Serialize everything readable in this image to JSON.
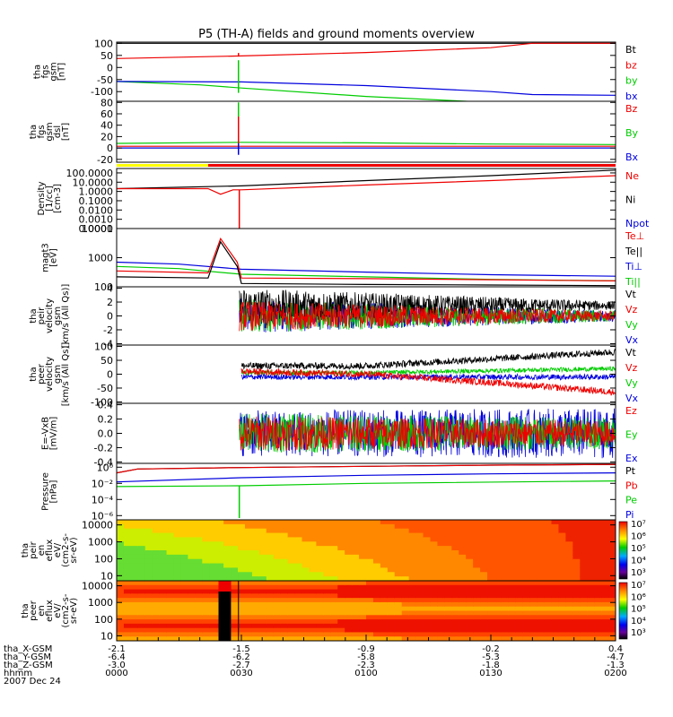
{
  "title": "P5 (TH-A) fields and ground moments overview",
  "colors": {
    "black": "#000000",
    "red": "#ee0000",
    "green": "#00cc00",
    "blue": "#0000dd",
    "yellow": "#ffff00"
  },
  "chart_data": [
    {
      "type": "line",
      "id": "fgs_gsm",
      "ylabel": [
        "tha",
        "fgs",
        "gsm",
        "[nT]"
      ],
      "ylim": [
        -140,
        105
      ],
      "yticks": [
        "100",
        "50",
        "0",
        "-50",
        "-100"
      ],
      "ytick_values": [
        100,
        50,
        0,
        -50,
        -100
      ],
      "legend": [
        {
          "label": "Bt",
          "color": "#000000"
        },
        {
          "label": "bz",
          "color": "#ee0000"
        },
        {
          "label": "by",
          "color": "#00cc00"
        },
        {
          "label": "bx",
          "color": "#0000dd"
        }
      ],
      "series": [
        {
          "name": "Bt",
          "color": "#000000",
          "x": [
            0,
            120
          ],
          "y": [
            100,
            100
          ]
        },
        {
          "name": "bz",
          "color": "#ee0000",
          "x": [
            0,
            30,
            60,
            90,
            100,
            120
          ],
          "y": [
            37,
            48,
            62,
            82,
            100,
            100
          ]
        },
        {
          "name": "by",
          "color": "#00cc00",
          "x": [
            0,
            20,
            30,
            60,
            90,
            120
          ],
          "y": [
            -58,
            -72,
            -85,
            -120,
            -145,
            -150
          ]
        },
        {
          "name": "bx",
          "color": "#0000dd",
          "x": [
            0,
            30,
            60,
            90,
            100,
            120
          ],
          "y": [
            -58,
            -60,
            -75,
            -100,
            -112,
            -115
          ]
        }
      ],
      "spikes": [
        {
          "x": 29.3,
          "color": "#00cc00",
          "y0": -105,
          "y1": 30
        },
        {
          "x": 29.3,
          "color": "#ee0000",
          "y0": 45,
          "y1": 60
        }
      ]
    },
    {
      "type": "line",
      "id": "fgs_gse",
      "ylabel": [
        "tha",
        "fgs",
        "gsm",
        "dsl",
        "[nT]"
      ],
      "ylim": [
        -25,
        82
      ],
      "yticks": [
        "80",
        "60",
        "40",
        "20",
        "0",
        "-20"
      ],
      "ytick_values": [
        80,
        60,
        40,
        20,
        0,
        -20
      ],
      "legend": [
        {
          "label": "Bz",
          "color": "#ee0000"
        },
        {
          "label": "By",
          "color": "#00cc00"
        },
        {
          "label": "Bx",
          "color": "#0000dd"
        }
      ],
      "series": [
        {
          "name": "Bz",
          "color": "#ee0000",
          "x": [
            0,
            30,
            60,
            90,
            120
          ],
          "y": [
            3,
            3,
            3,
            3,
            3
          ]
        },
        {
          "name": "By",
          "color": "#00cc00",
          "x": [
            0,
            30,
            60,
            90,
            120
          ],
          "y": [
            8,
            10,
            9,
            7,
            6
          ]
        },
        {
          "name": "Bx",
          "color": "#0000dd",
          "x": [
            0,
            30,
            60,
            90,
            120
          ],
          "y": [
            0,
            0,
            0,
            0,
            0
          ]
        }
      ],
      "spikes": [
        {
          "x": 29.3,
          "color": "#00cc00",
          "y0": -5,
          "y1": 80
        },
        {
          "x": 29.3,
          "color": "#ee0000",
          "y0": 0,
          "y1": 55
        },
        {
          "x": 29.3,
          "color": "#0000dd",
          "y0": -12,
          "y1": 8
        }
      ]
    },
    {
      "type": "bar",
      "id": "mode_bar",
      "segments": [
        {
          "x0": 0,
          "x1": 22,
          "color": "#ffff00"
        },
        {
          "x0": 22,
          "x1": 120,
          "color": "#ee0000"
        }
      ]
    },
    {
      "type": "line",
      "id": "density",
      "ylabel": [
        "Density",
        "[1/cc]",
        "[cm-3]"
      ],
      "log": true,
      "ylim": [
        0.0001,
        300
      ],
      "yticks": [
        "100.0000",
        "10.0000",
        "1.0000",
        "0.1000",
        "0.0100",
        "0.0010",
        "0.0001"
      ],
      "ytick_values": [
        100,
        10,
        1,
        0.1,
        0.01,
        0.001,
        0.0001
      ],
      "legend": [
        {
          "label": "Ne",
          "color": "#ee0000"
        },
        {
          "label": "Ni",
          "color": "#000000"
        },
        {
          "label": "Npot",
          "color": "#0000dd"
        }
      ],
      "series": [
        {
          "name": "Ni",
          "color": "#000000",
          "x": [
            0,
            30,
            60,
            90,
            120
          ],
          "y": [
            2,
            4,
            15,
            50,
            200
          ]
        },
        {
          "name": "Ne",
          "color": "#ee0000",
          "x": [
            0,
            22,
            25,
            28,
            30,
            60,
            90,
            120
          ],
          "y": [
            2,
            2,
            0.5,
            1.5,
            1.5,
            5,
            15,
            50
          ]
        }
      ],
      "spikes": [
        {
          "x": 29.5,
          "color": "#ee0000",
          "y0": 0.0001,
          "y1": 1.5
        }
      ]
    },
    {
      "type": "line",
      "id": "magt3",
      "ylabel": [
        "magt3",
        "[eV]"
      ],
      "log": true,
      "ylim": [
        100,
        10000
      ],
      "yticks": [
        "10000",
        "1000",
        "100"
      ],
      "ytick_values": [
        10000,
        1000,
        100
      ],
      "legend": [
        {
          "label": "Te⊥",
          "color": "#ee0000"
        },
        {
          "label": "Te||",
          "color": "#000000"
        },
        {
          "label": "Ti⊥",
          "color": "#0000dd"
        },
        {
          "label": "Ti||",
          "color": "#00cc00"
        }
      ],
      "series": [
        {
          "name": "Ti⊥",
          "color": "#0000dd",
          "x": [
            0,
            15,
            30,
            60,
            90,
            120
          ],
          "y": [
            700,
            600,
            400,
            320,
            260,
            230
          ]
        },
        {
          "name": "Ti||",
          "color": "#00cc00",
          "x": [
            0,
            15,
            30,
            60,
            90,
            120
          ],
          "y": [
            500,
            420,
            270,
            220,
            180,
            160
          ]
        },
        {
          "name": "Te⊥",
          "color": "#ee0000",
          "x": [
            0,
            22,
            25,
            29,
            30,
            60,
            90,
            120
          ],
          "y": [
            350,
            300,
            4500,
            700,
            200,
            190,
            175,
            160
          ]
        },
        {
          "name": "Te||",
          "color": "#000000",
          "x": [
            0,
            22,
            25,
            29,
            30,
            60,
            90,
            120
          ],
          "y": [
            220,
            200,
            3500,
            500,
            130,
            120,
            115,
            110
          ]
        }
      ]
    },
    {
      "type": "line",
      "id": "peir_velocity",
      "ylabel": [
        "tha",
        "peir",
        "velocity",
        "gsm",
        "[km/s (All Qs)]"
      ],
      "ylim": [
        -4.2,
        4.2
      ],
      "yticks": [
        "4",
        "2",
        "0",
        "-2",
        "-4"
      ],
      "ytick_values": [
        4,
        2,
        0,
        -2,
        -4
      ],
      "legend": [
        {
          "label": "Vt",
          "color": "#000000"
        },
        {
          "label": "Vz",
          "color": "#ee0000"
        },
        {
          "label": "Vy",
          "color": "#00cc00"
        },
        {
          "label": "Vx",
          "color": "#0000dd"
        }
      ],
      "noise": [
        {
          "color": "#0000dd",
          "base": 0,
          "amp0": 2.5,
          "amp1": 0.8
        },
        {
          "color": "#00cc00",
          "base": 0,
          "amp0": 2.5,
          "amp1": 0.8
        },
        {
          "color": "#000000",
          "base": 1.5,
          "amp0": 2.5,
          "amp1": 0.6
        },
        {
          "color": "#ee0000",
          "base": 0,
          "amp0": 2.2,
          "amp1": 0.7
        }
      ]
    },
    {
      "type": "line",
      "id": "peer_velocity",
      "ylabel": [
        "tha",
        "peer",
        "velocity",
        "gsm",
        "[km/s (All Qs)]"
      ],
      "ylim": [
        -105,
        105
      ],
      "yticks": [
        "100",
        "50",
        "0",
        "-50",
        "-100"
      ],
      "ytick_values": [
        100,
        50,
        0,
        -50,
        -100
      ],
      "legend": [
        {
          "label": "Vt",
          "color": "#000000"
        },
        {
          "label": "Vz",
          "color": "#ee0000"
        },
        {
          "label": "Vy",
          "color": "#00cc00"
        },
        {
          "label": "Vx",
          "color": "#0000dd"
        }
      ],
      "trend": [
        {
          "color": "#0000dd",
          "x": [
            30,
            120
          ],
          "y": [
            -10,
            -10
          ],
          "amp": 10
        },
        {
          "color": "#00cc00",
          "x": [
            30,
            60,
            120
          ],
          "y": [
            5,
            5,
            20
          ],
          "amp": 8
        },
        {
          "color": "#ee0000",
          "x": [
            30,
            60,
            90,
            120
          ],
          "y": [
            10,
            0,
            -30,
            -65
          ],
          "amp": 12
        },
        {
          "color": "#000000",
          "x": [
            30,
            60,
            90,
            120
          ],
          "y": [
            30,
            30,
            55,
            80
          ],
          "amp": 12
        }
      ]
    },
    {
      "type": "line",
      "id": "e_field",
      "ylabel": [
        "E=-VxB",
        "[mV/m]"
      ],
      "ylim": [
        -0.42,
        0.42
      ],
      "yticks": [
        "0.4",
        "0.2",
        "0.0",
        "-0.2",
        "-0.4"
      ],
      "ytick_values": [
        0.4,
        0.2,
        0,
        -0.2,
        -0.4
      ],
      "legend": [
        {
          "label": "Ez",
          "color": "#ee0000"
        },
        {
          "label": "Ey",
          "color": "#00cc00"
        },
        {
          "label": "Ex",
          "color": "#0000dd"
        }
      ],
      "noise": [
        {
          "color": "#0000dd",
          "base": 0,
          "amp0": 0.32,
          "amp1": 0.35
        },
        {
          "color": "#00cc00",
          "base": 0,
          "amp0": 0.28,
          "amp1": 0.22
        },
        {
          "color": "#ee0000",
          "base": 0,
          "amp0": 0.25,
          "amp1": 0.18
        }
      ]
    },
    {
      "type": "line",
      "id": "pressure",
      "ylabel": [
        "Pressure",
        "[nPa]"
      ],
      "log": true,
      "ylim": [
        3e-07,
        3
      ],
      "yticks": [
        "10⁰",
        "10⁻²",
        "10⁻⁴",
        "10⁻⁶"
      ],
      "ytick_values": [
        1,
        0.01,
        0.0001,
        1e-06
      ],
      "legend": [
        {
          "label": "Pt",
          "color": "#000000"
        },
        {
          "label": "Pb",
          "color": "#ee0000"
        },
        {
          "label": "Pe",
          "color": "#00cc00"
        },
        {
          "label": "Pi",
          "color": "#0000dd"
        }
      ],
      "series": [
        {
          "name": "Pt",
          "color": "#000000",
          "x": [
            0,
            5,
            30,
            60,
            90,
            120
          ],
          "y": [
            0.2,
            0.6,
            0.9,
            1.3,
            1.8,
            2.2
          ]
        },
        {
          "name": "Pb",
          "color": "#ee0000",
          "x": [
            0,
            5,
            30,
            60,
            90,
            120
          ],
          "y": [
            0.2,
            0.6,
            0.9,
            1.3,
            1.8,
            2.2
          ]
        },
        {
          "name": "Pi",
          "color": "#0000dd",
          "x": [
            0,
            30,
            60,
            90,
            120
          ],
          "y": [
            0.015,
            0.05,
            0.1,
            0.15,
            0.2
          ]
        },
        {
          "name": "Pe",
          "color": "#00cc00",
          "x": [
            0,
            29,
            30,
            60,
            120
          ],
          "y": [
            0.004,
            0.005,
            0.005,
            0.01,
            0.02
          ]
        }
      ],
      "spikes": [
        {
          "x": 29.5,
          "color": "#00cc00",
          "y0": 5e-07,
          "y1": 0.005
        }
      ]
    },
    {
      "type": "heatmap",
      "id": "peir_spectrogram",
      "ylabel": [
        "tha",
        "peir",
        "en",
        "eflux",
        "eV/",
        "(cm2-s-",
        "sr-eV)"
      ],
      "log": true,
      "ylim": [
        5,
        20000
      ],
      "yticks": [
        "10000",
        "1000",
        "100",
        "10"
      ],
      "ytick_values": [
        10000,
        1000,
        100,
        10
      ]
    },
    {
      "type": "heatmap",
      "id": "peer_spectrogram",
      "ylabel": [
        "tha",
        "peer",
        "en",
        "eflux",
        "eV/",
        "(cm2-s-",
        "sr-eV)"
      ],
      "log": true,
      "ylim": [
        5,
        20000
      ],
      "yticks": [
        "10000",
        "1000",
        "100",
        "10"
      ],
      "ytick_values": [
        10000,
        1000,
        100,
        10
      ]
    }
  ],
  "colorbars": [
    [
      "10⁷",
      "10⁶",
      "10⁵",
      "10⁴",
      "10³"
    ],
    [
      "10⁷",
      "10⁶",
      "10⁵",
      "10⁴",
      "10³"
    ]
  ],
  "xaxis": {
    "xlim": [
      0,
      120
    ],
    "positions": [
      0,
      30,
      60,
      90,
      120
    ],
    "rows": [
      {
        "label": "tha_X-GSM",
        "values": [
          "-2.1",
          "-1.5",
          "-0.9",
          "-0.2",
          "0.4"
        ]
      },
      {
        "label": "tha_Y-GSM",
        "values": [
          "-6.4",
          "-6.2",
          "-5.8",
          "-5.3",
          "-4.7"
        ]
      },
      {
        "label": "tha_Z-GSM",
        "values": [
          "-3.0",
          "-2.7",
          "-2.3",
          "-1.8",
          "-1.3"
        ]
      },
      {
        "label": "hhmm",
        "values": [
          "0000",
          "0030",
          "0100",
          "0130",
          "0200"
        ]
      }
    ],
    "date": "2007 Dec 24"
  }
}
